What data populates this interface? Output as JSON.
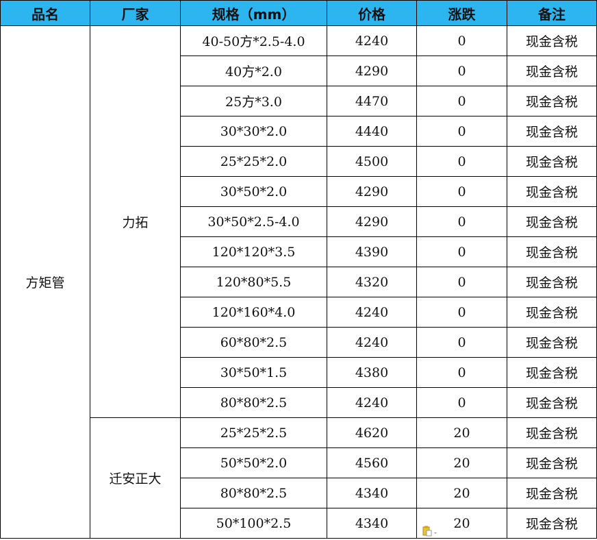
{
  "headers": [
    "品名",
    "厂家",
    "规格（mm）",
    "价格",
    "涨跌",
    "备注"
  ],
  "product": "方矩管",
  "groups": [
    {
      "maker": "力拓",
      "rows": [
        [
          "40-50方*2.5-4.0",
          "4240",
          "0",
          "现金含税"
        ],
        [
          "40方*2.0",
          "4290",
          "0",
          "现金含税"
        ],
        [
          "25方*3.0",
          "4470",
          "0",
          "现金含税"
        ],
        [
          "30*30*2.0",
          "4440",
          "0",
          "现金含税"
        ],
        [
          "25*25*2.0",
          "4500",
          "0",
          "现金含税"
        ],
        [
          "30*50*2.0",
          "4290",
          "0",
          "现金含税"
        ],
        [
          "30*50*2.5-4.0",
          "4290",
          "0",
          "现金含税"
        ],
        [
          "120*120*3.5",
          "4390",
          "0",
          "现金含税"
        ],
        [
          "120*80*5.5",
          "4320",
          "0",
          "现金含税"
        ],
        [
          "120*160*4.0",
          "4240",
          "0",
          "现金含税"
        ],
        [
          "60*80*2.5",
          "4240",
          "0",
          "现金含税"
        ],
        [
          "30*50*1.5",
          "4380",
          "0",
          "现金含税"
        ],
        [
          "80*80*2.5",
          "4240",
          "0",
          "现金含税"
        ]
      ]
    },
    {
      "maker": "迁安正大",
      "rows": [
        [
          "25*25*2.5",
          "4620",
          "20",
          "现金含税"
        ],
        [
          "50*50*2.0",
          "4560",
          "20",
          "现金含税"
        ],
        [
          "80*80*2.5",
          "4340",
          "20",
          "现金含税"
        ],
        [
          "50*100*2.5",
          "4340",
          "20",
          "现金含税"
        ]
      ]
    }
  ],
  "colors": {
    "header_bg": "#2cb5ef"
  },
  "icons": {
    "paste_options": "paste-options-icon"
  }
}
